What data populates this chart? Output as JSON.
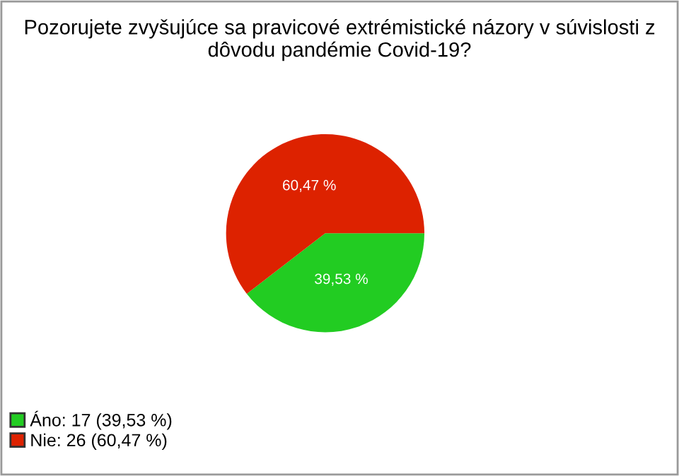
{
  "chart_data": {
    "type": "pie",
    "title": "Pozorujete zvyšujúce sa pravicové extrémistické názory v súvislosti z dôvodu pandémie Covid-19?",
    "categories": [
      "Áno: 17 (39,53 %)",
      "Nie: 26 (60,47 %)"
    ],
    "values": [
      39.53,
      60.47
    ],
    "value_labels": [
      "39,53 %",
      "60,47 %"
    ],
    "colors": [
      "#22cc22",
      "#dd2200"
    ],
    "legend": "bottom left"
  }
}
